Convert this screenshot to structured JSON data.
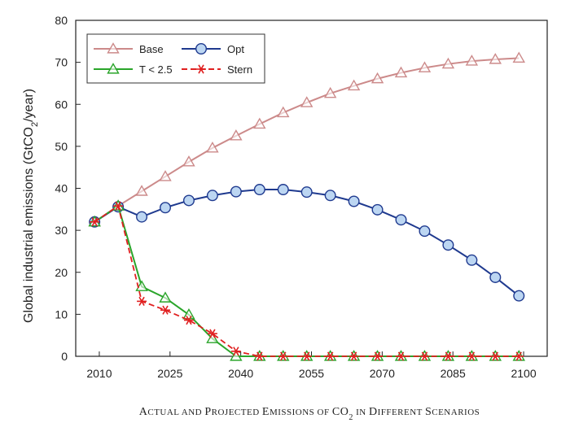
{
  "chart_data": {
    "type": "line",
    "title": "",
    "caption": {
      "prefix": "A",
      "pre": "CTUAL AND ",
      "p2": "P",
      "p2rest": "ROJECTED ",
      "e": "E",
      "erest": "MISSIONS OF ",
      "co": "CO",
      "co_sub": "2",
      "in": " IN ",
      "d": "D",
      "drest": "IFFERENT ",
      "s": "S",
      "srest": "CENARIOS"
    },
    "ylabel": {
      "main": "Global industrial emissions (GtCO",
      "sub": "2",
      "tail": "/year)"
    },
    "xlabel": "",
    "xlim": [
      2005,
      2105
    ],
    "ylim": [
      0,
      80
    ],
    "x_ticks": [
      2010,
      2025,
      2040,
      2055,
      2070,
      2085,
      2100
    ],
    "y_ticks": [
      0,
      10,
      20,
      30,
      40,
      50,
      60,
      70,
      80
    ],
    "grid": false,
    "legend": {
      "position": "top-left",
      "entries": [
        {
          "name": "Base",
          "series": 0
        },
        {
          "name": "Opt",
          "series": 1
        },
        {
          "name": "T < 2.5",
          "series": 2
        },
        {
          "name": "Stern",
          "series": 3
        }
      ]
    },
    "x": [
      2009,
      2014,
      2019,
      2024,
      2029,
      2034,
      2039,
      2044,
      2049,
      2054,
      2059,
      2064,
      2069,
      2074,
      2079,
      2084,
      2089,
      2094,
      2099
    ],
    "series": [
      {
        "name": "Base",
        "color": "#cc8a8a",
        "marker": "triangle",
        "dash": "solid",
        "values": [
          32.0,
          35.8,
          39.3,
          42.8,
          46.3,
          49.6,
          52.5,
          55.3,
          58.0,
          60.4,
          62.6,
          64.4,
          66.1,
          67.5,
          68.7,
          69.6,
          70.3,
          70.7,
          71.0
        ]
      },
      {
        "name": "Opt",
        "color": "#1f3a8f",
        "marker": "circle",
        "dash": "solid",
        "values": [
          32.0,
          35.6,
          33.2,
          35.4,
          37.1,
          38.3,
          39.2,
          39.7,
          39.7,
          39.1,
          38.3,
          36.9,
          34.9,
          32.5,
          29.8,
          26.5,
          22.9,
          18.8,
          14.4
        ]
      },
      {
        "name": "T < 2.5",
        "color": "#2aa52a",
        "marker": "triangle",
        "dash": "solid",
        "values": [
          32.0,
          35.8,
          16.6,
          13.9,
          9.9,
          4.2,
          0.0,
          0.0,
          0.0,
          0.0,
          0.0,
          0.0,
          0.0,
          0.0,
          0.0,
          0.0,
          0.0,
          0.0,
          0.0
        ]
      },
      {
        "name": "Stern",
        "color": "#e02020",
        "marker": "asterisk",
        "dash": "dashed",
        "values": [
          32.0,
          35.8,
          13.1,
          11.0,
          8.6,
          5.4,
          1.2,
          0.0,
          0.0,
          0.0,
          0.0,
          0.0,
          0.0,
          0.0,
          0.0,
          0.0,
          0.0,
          0.0,
          0.0
        ]
      }
    ]
  }
}
